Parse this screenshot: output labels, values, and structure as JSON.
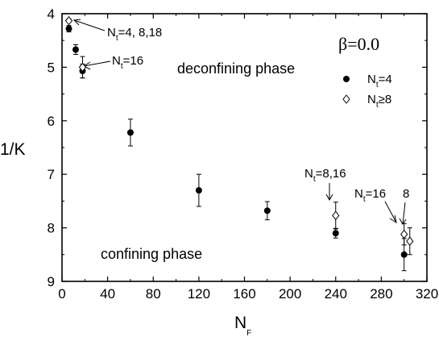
{
  "chart_data": {
    "type": "scatter",
    "title": "",
    "xlabel": "N",
    "xlabel_sub": "F",
    "ylabel": "1/K",
    "xlim": [
      0,
      320
    ],
    "ylim": [
      4,
      9
    ],
    "y_inverted": true,
    "grid": false,
    "x_ticks": [
      "0",
      "40",
      "80",
      "120",
      "160",
      "200",
      "240",
      "280",
      "320"
    ],
    "y_ticks": [
      "4",
      "5",
      "6",
      "7",
      "8",
      "9"
    ],
    "legend": {
      "title": "β=0.0",
      "placement": "top-right",
      "entries": [
        {
          "marker": "filled-circle",
          "label_main": "N",
          "label_sub": "t",
          "label_rest": "=4"
        },
        {
          "marker": "open-diamond",
          "label_main": "N",
          "label_sub": "t",
          "label_rest": "≥8"
        }
      ]
    },
    "series": [
      {
        "name": "Nt=4",
        "marker": "filled-circle",
        "points": [
          {
            "x": 6,
            "y": 4.28,
            "err": 0.06
          },
          {
            "x": 12,
            "y": 4.67,
            "err": 0.09
          },
          {
            "x": 18,
            "y": 5.07,
            "err": 0.13
          },
          {
            "x": 60,
            "y": 6.22,
            "err": 0.25
          },
          {
            "x": 120,
            "y": 7.3,
            "err": 0.3
          },
          {
            "x": 180,
            "y": 7.68,
            "err": 0.17
          },
          {
            "x": 240,
            "y": 8.1,
            "err": 0.09
          },
          {
            "x": 300,
            "y": 8.5,
            "err": 0.3
          }
        ]
      },
      {
        "name": "Nt≥8",
        "marker": "open-diamond",
        "points": [
          {
            "x": 6,
            "y": 4.13,
            "err": 0.03
          },
          {
            "x": 18,
            "y": 5.0,
            "err": 0.2
          },
          {
            "x": 240,
            "y": 7.77,
            "err": 0.25
          },
          {
            "x": 300,
            "y": 8.12,
            "err": 0.2
          },
          {
            "x": 305,
            "y": 8.25,
            "err": 0.25
          }
        ]
      }
    ],
    "annotations": [
      {
        "main": "N",
        "sub": "t",
        "rest": "=4, 8,18"
      },
      {
        "main": "N",
        "sub": "t",
        "rest": "=16"
      },
      {
        "main": "N",
        "sub": "t",
        "rest": "=8,16"
      },
      {
        "main": "N",
        "sub": "t",
        "rest": "=16"
      },
      {
        "main": "",
        "sub": "",
        "rest": "8"
      }
    ],
    "regions": [
      "deconfining phase",
      "confining phase"
    ]
  }
}
